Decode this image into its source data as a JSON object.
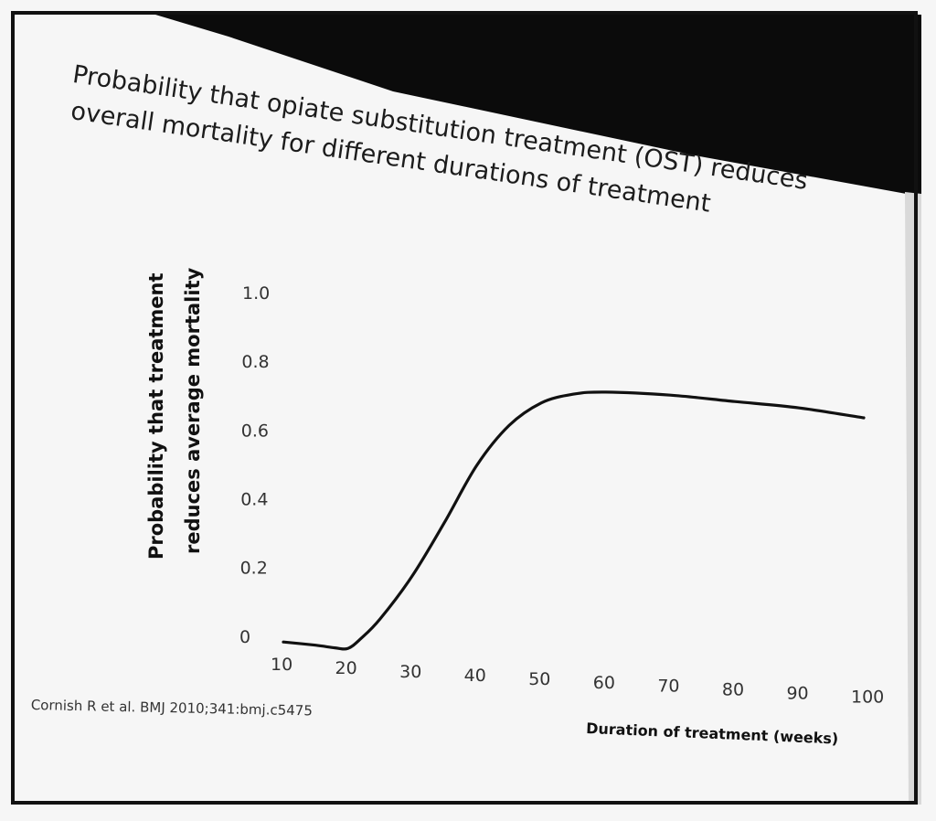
{
  "title_lines": [
    "Probability that opiate substitution treatment (OST) reduces",
    "overall mortality for different durations of treatment"
  ],
  "citation": "Cornish R et al. BMJ 2010;341:bmj.c5475",
  "chart_data": {
    "type": "line",
    "title": "Probability that opiate substitution treatment (OST) reduces overall mortality for different durations of treatment",
    "xlabel": "Duration of treatment (weeks)",
    "ylabel": [
      "Probability that treatment",
      "reduces average mortality"
    ],
    "x_ticks": [
      "10",
      "20",
      "30",
      "40",
      "50",
      "60",
      "70",
      "80",
      "90",
      "100"
    ],
    "y_ticks": [
      "0",
      "0.2",
      "0.4",
      "0.6",
      "0.8",
      "1.0"
    ],
    "xlim": [
      10,
      100
    ],
    "ylim": [
      0,
      1.0
    ],
    "grid": false,
    "series": [
      {
        "x": [
          10,
          15,
          18,
          20,
          22,
          25,
          30,
          35,
          40,
          45,
          50,
          55,
          60,
          70,
          80,
          90,
          100
        ],
        "y": [
          0.01,
          0.005,
          0.0,
          0.0,
          0.03,
          0.09,
          0.22,
          0.38,
          0.55,
          0.67,
          0.74,
          0.77,
          0.78,
          0.78,
          0.77,
          0.76,
          0.74
        ],
        "color": "#111111"
      }
    ]
  },
  "colors": {
    "background": "#f6f6f6",
    "line": "#111111",
    "projector_shadow": "#0b0b0b"
  }
}
